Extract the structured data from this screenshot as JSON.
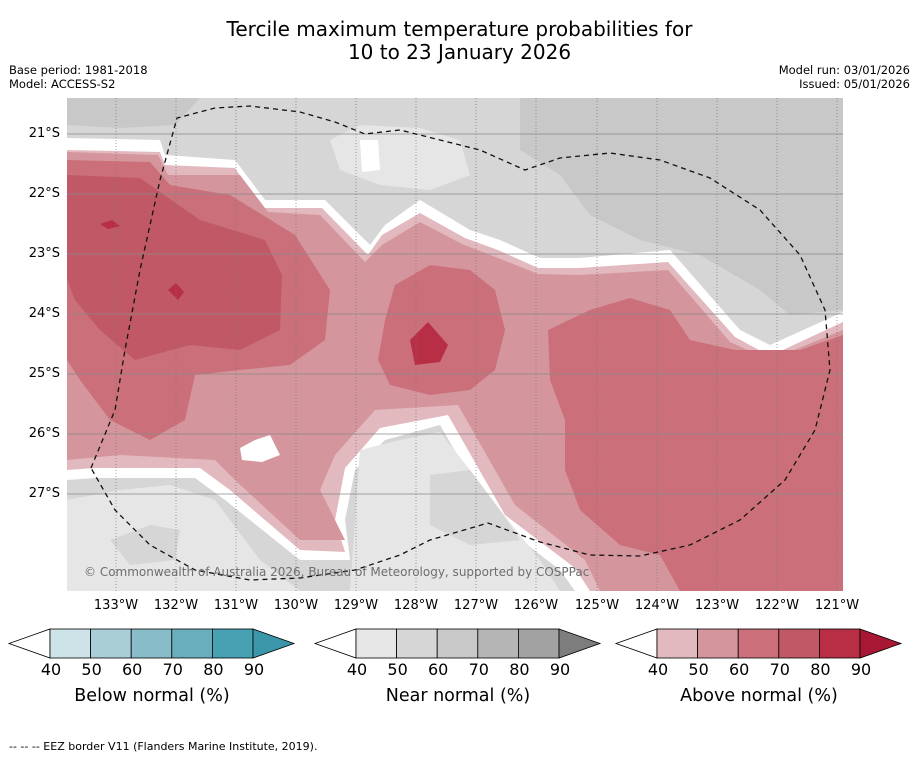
{
  "title": {
    "line1": "Tercile maximum temperature probabilities for",
    "line2": "10 to 23 January 2026"
  },
  "meta": {
    "base_period": "Base period: 1981-2018",
    "model": "Model: ACCESS-S2",
    "model_run": "Model run: 03/01/2026",
    "issued": "Issued: 05/01/2026"
  },
  "axes": {
    "latitudes": [
      "21°S",
      "22°S",
      "23°S",
      "24°S",
      "25°S",
      "26°S",
      "27°S"
    ],
    "longitudes": [
      "133°W",
      "132°W",
      "131°W",
      "130°W",
      "129°W",
      "128°W",
      "127°W",
      "126°W",
      "125°W",
      "124°W",
      "123°W",
      "122°W",
      "121°W"
    ]
  },
  "copyright": "© Commonwealth of Australia 2026, Bureau of Meteorology, supported by COSPPac",
  "colorbars": [
    {
      "label": "Below normal (%)",
      "ticks": [
        "40",
        "50",
        "60",
        "70",
        "80",
        "90"
      ],
      "colors": [
        "#ffffff",
        "#cde3e8",
        "#a9ced6",
        "#88bcc8",
        "#68aebd",
        "#47a1b2",
        "#3a96a8"
      ]
    },
    {
      "label": "Near normal (%)",
      "ticks": [
        "40",
        "50",
        "60",
        "70",
        "80",
        "90"
      ],
      "colors": [
        "#ffffff",
        "#e6e6e6",
        "#d6d6d6",
        "#c8c8c8",
        "#b5b5b5",
        "#a2a2a2",
        "#7d7d7d"
      ]
    },
    {
      "label": "Above normal (%)",
      "ticks": [
        "40",
        "50",
        "60",
        "70",
        "80",
        "90"
      ],
      "colors": [
        "#ffffff",
        "#e1b9be",
        "#d5959c",
        "#cb707a",
        "#c15866",
        "#b82e45",
        "#a81733"
      ]
    }
  ],
  "footnote": "--  --  -- EEZ border V11 (Flanders Marine Institute, 2019)."
}
